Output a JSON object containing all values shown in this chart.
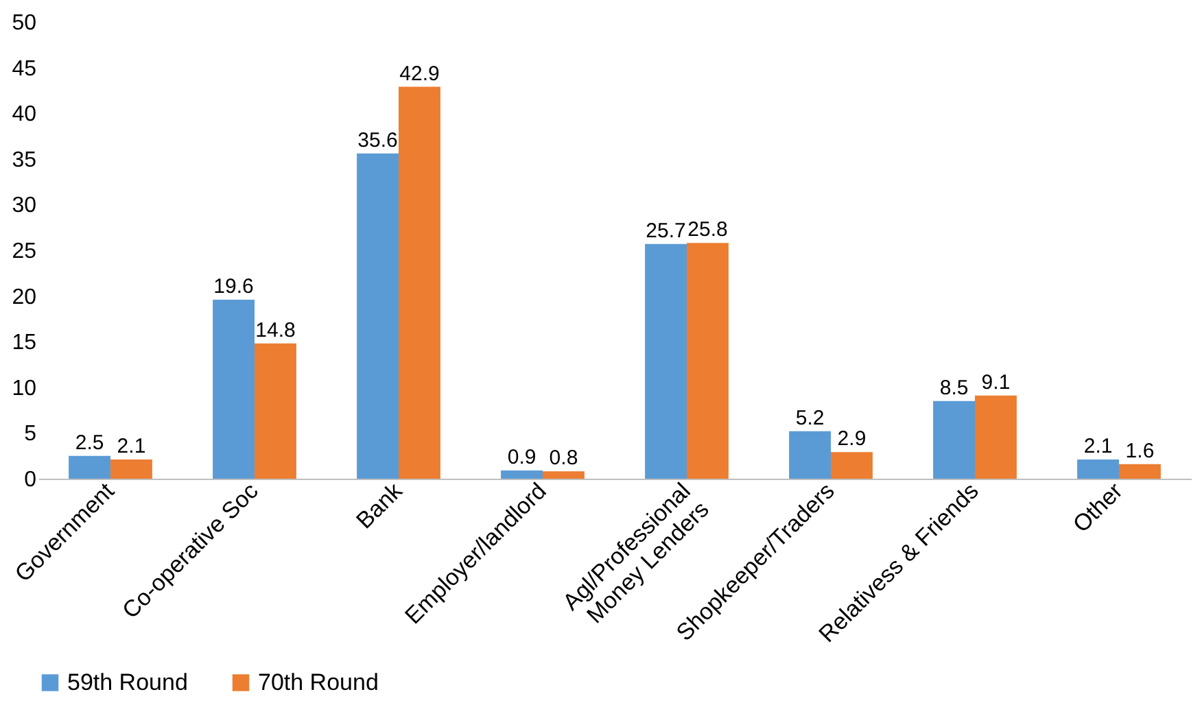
{
  "chart_data": {
    "type": "bar",
    "categories": [
      "Government",
      "Co-operative Soc",
      "Bank",
      "Employer/landlord",
      "Agl/Professional Money Lenders",
      "Shopkeeper/Traders",
      "Relativess & Friends",
      "Other"
    ],
    "series": [
      {
        "name": "59th Round",
        "color": "#5b9bd5",
        "values": [
          2.5,
          19.6,
          35.6,
          0.9,
          25.7,
          5.2,
          8.5,
          2.1
        ]
      },
      {
        "name": "70th Round",
        "color": "#ed7d31",
        "values": [
          2.1,
          14.8,
          42.9,
          0.8,
          25.8,
          2.9,
          9.1,
          1.6
        ]
      }
    ],
    "ylim": [
      0,
      50
    ],
    "yticks": [
      0,
      5,
      10,
      15,
      20,
      25,
      30,
      35,
      40,
      45,
      50
    ],
    "grid": false,
    "legend": "bottom",
    "data_labels": true
  }
}
